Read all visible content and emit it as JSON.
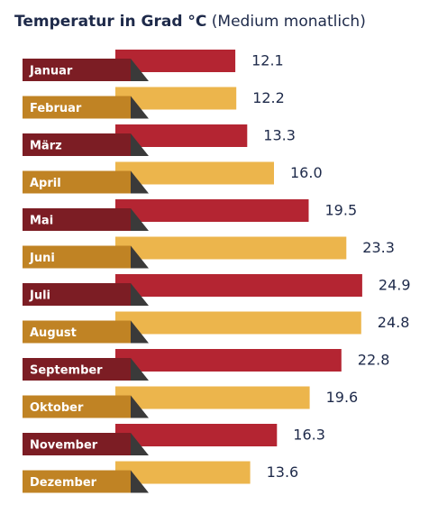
{
  "title_bold": "Temperatur in Grad °C",
  "title_light": "(Medium monatlich)",
  "colors": {
    "bar_odd": "#b42532",
    "bar_even": "#ecb54c",
    "label_odd": "#7c1d24",
    "label_even": "#c08324",
    "fold": "#3a3a3a",
    "value_text": "#1e2a4a"
  },
  "chart_data": {
    "type": "bar",
    "orientation": "horizontal",
    "title": "Temperatur in Grad °C (Medium monatlich)",
    "categories": [
      "Januar",
      "Februar",
      "März",
      "April",
      "Mai",
      "Juni",
      "Juli",
      "August",
      "September",
      "Oktober",
      "November",
      "Dezember"
    ],
    "values": [
      12.1,
      12.2,
      13.3,
      16.0,
      19.5,
      23.3,
      24.9,
      24.8,
      22.8,
      19.6,
      16.3,
      13.6
    ],
    "value_labels": [
      "12.1",
      "12.2",
      "13.3",
      "16.0",
      "19.5",
      "23.3",
      "24.9",
      "24.8",
      "22.8",
      "19.6",
      "16.3",
      "13.6"
    ],
    "grid": false,
    "legend": "none"
  }
}
